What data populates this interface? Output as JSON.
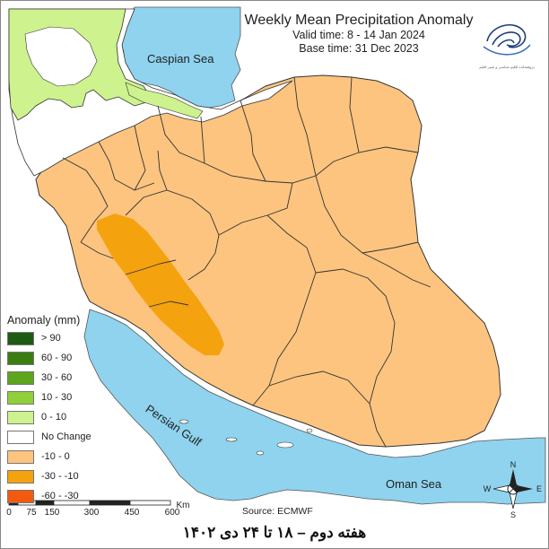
{
  "title": "Weekly Mean Precipitation Anomaly",
  "valid_time": "Valid time: 8 - 14  Jan 2024",
  "base_time": "Base time: 31 Dec 2023",
  "water_labels": {
    "caspian": "Caspian Sea",
    "persian_gulf": "Persian Gulf",
    "oman": "Oman Sea"
  },
  "legend": {
    "title": "Anomaly (mm)",
    "items": [
      {
        "label": "> 90",
        "color": "#1f5a12"
      },
      {
        "label": "60 - 90",
        "color": "#3c7d12"
      },
      {
        "label": "30 - 60",
        "color": "#5ea51e"
      },
      {
        "label": "10 - 30",
        "color": "#8fcf3a"
      },
      {
        "label": "0 - 10",
        "color": "#cdf28e"
      },
      {
        "label": "No Change",
        "color": "#ffffff"
      },
      {
        "label": "-10 - 0",
        "color": "#fdc47f"
      },
      {
        "label": "-30 - -10",
        "color": "#f5a20f"
      },
      {
        "label": "-60 - -30",
        "color": "#f35a10"
      }
    ]
  },
  "scale_bar": {
    "ticks": [
      "0",
      "75",
      "150",
      "300",
      "450",
      "600"
    ],
    "unit": "Km"
  },
  "source": "Source: ECMWF",
  "footer": "هفته دوم – ۱۸ تا ۲۴ دی ۱۴۰۲",
  "compass": {
    "n": "N",
    "s": "S",
    "e": "E",
    "w": "W"
  },
  "logo_text": "پژوهشکده اقلیم شناسی و تغییر اقلیم"
}
